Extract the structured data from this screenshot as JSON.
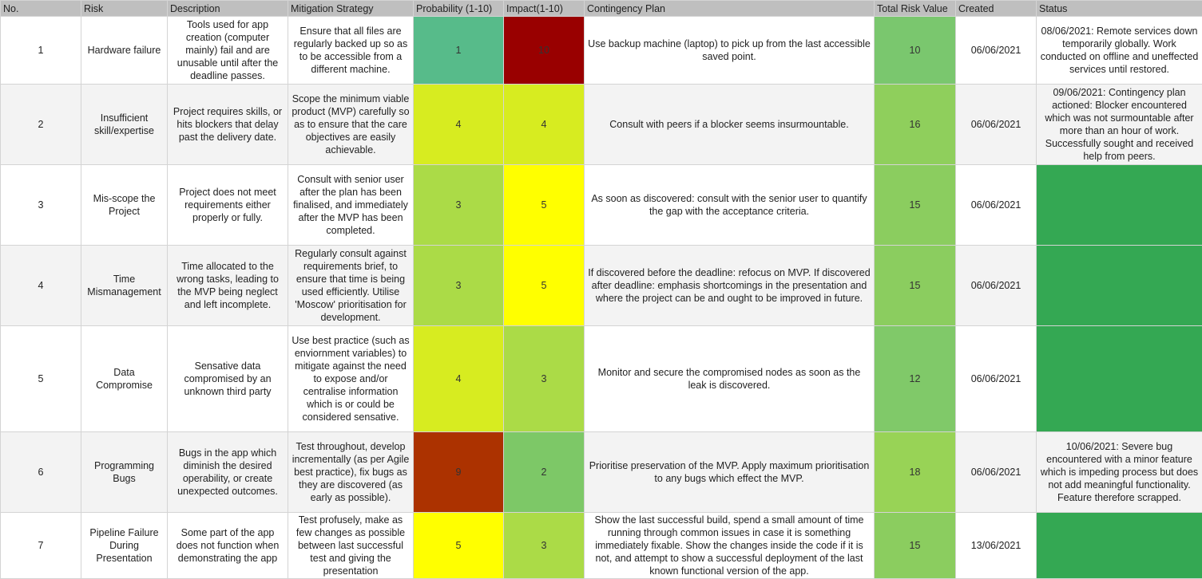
{
  "columns": [
    "No.",
    "Risk",
    "Description",
    "Mitigation Strategy",
    "Probability (1-10)",
    "Impact(1-10)",
    "Contingency Plan",
    "Total Risk Value",
    "Created",
    "Status"
  ],
  "rows": [
    {
      "no": "1",
      "risk": "Hardware failure",
      "description": "Tools used for app creation (computer mainly) fail and are unusable until after the deadline passes.",
      "mitigation": "Ensure that all files are regularly backed up so as to be accessible from a different machine.",
      "probability": "1",
      "impact": "10",
      "contingency": "Use backup machine (laptop) to pick up from the last accessible saved point.",
      "total": "10",
      "created": "06/06/2021",
      "status": "08/06/2021: Remote services down temporarily globally. Work conducted on offline and uneffected services until restored.",
      "probability_color": "#57bb8a",
      "impact_color": "#990000",
      "total_color": "#7ac76e",
      "status_color": ""
    },
    {
      "no": "2",
      "risk": "Insufficient skill/expertise",
      "description": "Project requires skills, or hits blockers that delay past the delivery date.",
      "mitigation": "Scope the minimum viable product (MVP) carefully so as to ensure that the care objectives are easily achievable.",
      "probability": "4",
      "impact": "4",
      "contingency": "Consult with peers if a blocker seems insurmountable.",
      "total": "16",
      "created": "06/06/2021",
      "status": "09/06/2021: Contingency plan actioned: Blocker encountered which was not surmountable after more than an hour of work. Successfully sought and received help from peers.",
      "probability_color": "#d7ec20",
      "impact_color": "#d7ec20",
      "total_color": "#8fcf5c",
      "status_color": ""
    },
    {
      "no": "3",
      "risk": "Mis-scope the Project",
      "description": "Project does not meet requirements either properly or fully.",
      "mitigation": "Consult with senior user after the plan has been finalised, and immediately after the MVP has been completed.",
      "probability": "3",
      "impact": "5",
      "contingency": "As soon as discovered: consult with the senior user to quantify the gap with the acceptance criteria.",
      "total": "15",
      "created": "06/06/2021",
      "status": "",
      "probability_color": "#abdb47",
      "impact_color": "#ffff00",
      "total_color": "#8bcd5f",
      "status_color": "#34a853"
    },
    {
      "no": "4",
      "risk": "Time Mismanagement",
      "description": "Time allocated to the wrong tasks, leading to the MVP being neglect and left incomplete.",
      "mitigation": "Regularly consult against requirements brief, to ensure that time is being used efficiently. Utilise 'Moscow' prioritisation for development.",
      "probability": "3",
      "impact": "5",
      "contingency": "If discovered before the deadline: refocus on MVP. If discovered after deadline: emphasis shortcomings in the presentation and where the project can be and ought to be improved in future.",
      "total": "15",
      "created": "06/06/2021",
      "status": "",
      "probability_color": "#abdb47",
      "impact_color": "#ffff00",
      "total_color": "#8bcd5f",
      "status_color": "#34a853"
    },
    {
      "no": "5",
      "risk": "Data Compromise",
      "description": "Sensative data compromised by an unknown third party",
      "mitigation": "Use best practice (such as enviornment variables) to mitigate against the need to expose and/or centralise information which is or could be considered sensative.",
      "probability": "4",
      "impact": "3",
      "contingency": "Monitor and secure the compromised nodes as soon as the leak is discovered.",
      "total": "12",
      "created": "06/06/2021",
      "status": "",
      "probability_color": "#d7ec20",
      "impact_color": "#abdb47",
      "total_color": "#80c969",
      "status_color": "#34a853"
    },
    {
      "no": "6",
      "risk": "Programming Bugs",
      "description": "Bugs in the app which diminish the desired operability, or create unexpected outcomes.",
      "mitigation": "Test throughout, develop incrementally (as per Agile best practice), fix bugs as they are discovered (as early as possible).",
      "probability": "9",
      "impact": "2",
      "contingency": "Prioritise preservation of the MVP. Apply maximum prioritisation to any bugs which effect the MVP.",
      "total": "18",
      "created": "06/06/2021",
      "status": "10/06/2021: Severe bug encountered with a minor feature which is impeding process but does not add meaningful functionality. Feature therefore scrapped.",
      "probability_color": "#ac3200",
      "impact_color": "#7dc867",
      "total_color": "#98d356",
      "status_color": ""
    },
    {
      "no": "7",
      "risk": "Pipeline Failure During Presentation",
      "description": "Some part of the app does not function when demonstrating the app",
      "mitigation": "Test profusely, make as few changes as possible between last successful test and giving the presentation",
      "probability": "5",
      "impact": "3",
      "contingency": "Show the last successful build, spend a small amount of time running through common issues in case it is something immediately fixable. Show the changes inside the code if it is not, and attempt to show a successful deployment of the last known functional version of the app.",
      "total": "15",
      "created": "13/06/2021",
      "status": "",
      "probability_color": "#ffff00",
      "impact_color": "#abdb47",
      "total_color": "#8bcd5f",
      "status_color": "#34a853"
    }
  ]
}
